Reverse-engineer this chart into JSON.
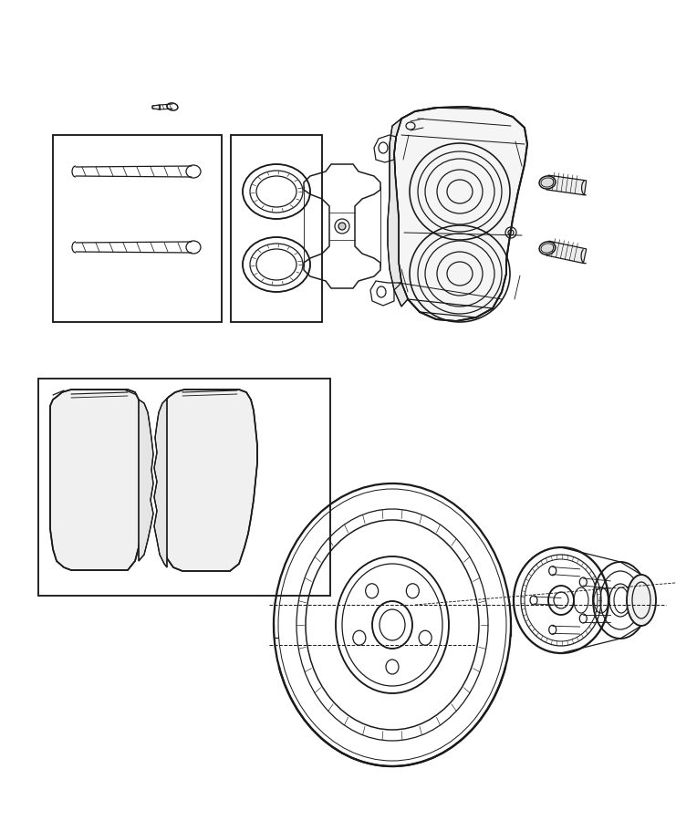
{
  "bg_color": "#ffffff",
  "line_color": "#1a1a1a",
  "lw": 0.9,
  "fig_width": 7.41,
  "fig_height": 9.0,
  "dpi": 100
}
